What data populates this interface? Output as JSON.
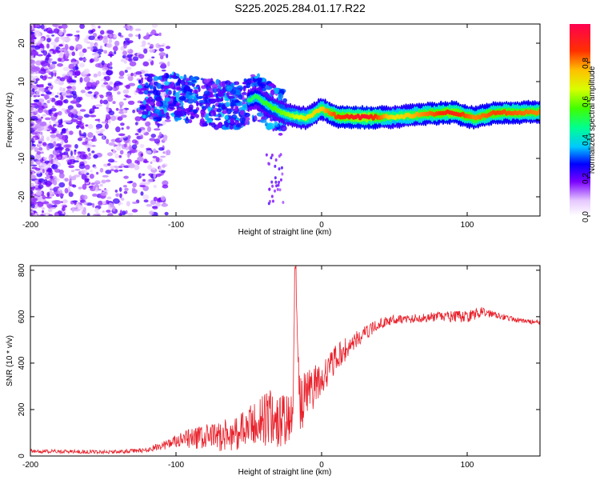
{
  "title": "S225.2025.284.01.17.R22",
  "chart_data": [
    {
      "type": "heatmap",
      "name": "spectrogram",
      "xlabel": "Height of straight line (km)",
      "ylabel": "Frequency (Hz)",
      "xlim": [
        -200,
        150
      ],
      "ylim": [
        -25,
        25
      ],
      "xticks": [
        -200,
        -100,
        0,
        100
      ],
      "yticks": [
        20,
        10,
        0,
        -10,
        -20
      ],
      "ridge": [
        {
          "x": -120,
          "f": 6.0,
          "a": 0.35
        },
        {
          "x": -100,
          "f": 6.0,
          "a": 0.45
        },
        {
          "x": -80,
          "f": 4.5,
          "a": 0.45
        },
        {
          "x": -60,
          "f": 3.5,
          "a": 0.45
        },
        {
          "x": -45,
          "f": 6.0,
          "a": 0.5
        },
        {
          "x": -35,
          "f": 3.5,
          "a": 0.55
        },
        {
          "x": -25,
          "f": 1.5,
          "a": 0.6
        },
        {
          "x": -10,
          "f": 0.5,
          "a": 0.7
        },
        {
          "x": 0,
          "f": 3.0,
          "a": 0.75
        },
        {
          "x": 10,
          "f": 1.0,
          "a": 0.85
        },
        {
          "x": 30,
          "f": 0.7,
          "a": 0.95
        },
        {
          "x": 50,
          "f": 0.8,
          "a": 0.7
        },
        {
          "x": 70,
          "f": 1.5,
          "a": 0.8
        },
        {
          "x": 90,
          "f": 2.0,
          "a": 0.9
        },
        {
          "x": 105,
          "f": 0.5,
          "a": 0.8
        },
        {
          "x": 120,
          "f": 2.0,
          "a": 0.85
        },
        {
          "x": 150,
          "f": 2.0,
          "a": 0.8
        }
      ],
      "colorbar": {
        "label": "Normalized spectral amplitude",
        "range": [
          0,
          1
        ],
        "ticks": [
          0.0,
          0.2,
          0.4,
          0.6,
          0.8
        ],
        "tick_labels": [
          "0.0",
          "0.2",
          "0.4",
          "0.6",
          "0.8"
        ]
      }
    },
    {
      "type": "line",
      "name": "snr",
      "xlabel": "Height of straight line (km)",
      "ylabel": "SNR (10 * v/v)",
      "xlim": [
        -200,
        150
      ],
      "ylim": [
        0,
        820
      ],
      "xticks": [
        -200,
        -100,
        0,
        100
      ],
      "yticks": [
        0,
        200,
        400,
        600,
        800
      ],
      "color": "#e8202a",
      "x": [
        -200,
        -180,
        -160,
        -140,
        -120,
        -110,
        -100,
        -90,
        -80,
        -70,
        -60,
        -50,
        -40,
        -35,
        -30,
        -25,
        -20,
        -18,
        -15,
        -10,
        -5,
        0,
        10,
        20,
        30,
        40,
        50,
        60,
        70,
        80,
        90,
        100,
        110,
        120,
        130,
        140,
        150
      ],
      "y": [
        20,
        20,
        18,
        18,
        25,
        45,
        60,
        75,
        80,
        85,
        95,
        120,
        160,
        160,
        150,
        155,
        160,
        810,
        210,
        270,
        300,
        330,
        420,
        480,
        530,
        570,
        590,
        590,
        595,
        600,
        600,
        600,
        620,
        610,
        590,
        580,
        575
      ],
      "noise": [
        8,
        8,
        8,
        8,
        10,
        18,
        30,
        45,
        55,
        65,
        75,
        90,
        120,
        130,
        120,
        110,
        100,
        0,
        120,
        110,
        90,
        70,
        60,
        45,
        30,
        22,
        20,
        20,
        20,
        22,
        25,
        25,
        22,
        15,
        12,
        10,
        10
      ]
    }
  ]
}
